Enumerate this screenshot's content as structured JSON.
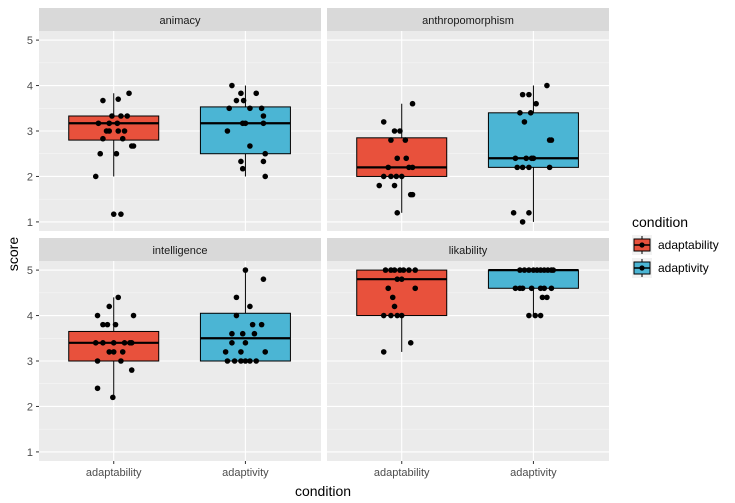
{
  "chart_data": {
    "type": "boxplot",
    "xlabel": "condition",
    "ylabel": "score",
    "categories": [
      "adaptability",
      "adaptivity"
    ],
    "ylim": [
      0.8,
      5.2
    ],
    "yticks": [
      1,
      2,
      3,
      4,
      5
    ],
    "grid": true,
    "legend": {
      "title": "condition",
      "position": "right",
      "entries": [
        {
          "label": "adaptability",
          "color": "#E8513C"
        },
        {
          "label": "adaptivity",
          "color": "#4BB5D4"
        }
      ]
    },
    "colors": {
      "adaptability": "#E8513C",
      "adaptivity": "#4BB5D4"
    },
    "facets": [
      {
        "title": "animacy",
        "boxes": [
          {
            "category": "adaptability",
            "lower_whisker": 2.0,
            "q1": 2.8,
            "median": 3.17,
            "q3": 3.33,
            "upper_whisker": 3.83,
            "points": [
              [
                -0.12,
                3.67
              ],
              [
                0.05,
                3.7
              ],
              [
                0.17,
                3.83
              ],
              [
                -0.17,
                3.17
              ],
              [
                -0.05,
                3.17
              ],
              [
                -0.02,
                3.33
              ],
              [
                0.08,
                3.33
              ],
              [
                0.15,
                3.33
              ],
              [
                0.04,
                3.17
              ],
              [
                -0.08,
                3.0
              ],
              [
                0.12,
                3.0
              ],
              [
                0.05,
                3.0
              ],
              [
                -0.05,
                3.0
              ],
              [
                0.1,
                2.83
              ],
              [
                -0.12,
                2.83
              ],
              [
                0.2,
                2.67
              ],
              [
                0.22,
                2.67
              ],
              [
                -0.15,
                2.5
              ],
              [
                0.03,
                2.5
              ],
              [
                -0.2,
                2.0
              ],
              [
                0.0,
                1.17
              ],
              [
                0.08,
                1.17
              ]
            ]
          },
          {
            "category": "adaptivity",
            "lower_whisker": 2.0,
            "q1": 2.5,
            "median": 3.17,
            "q3": 3.53,
            "upper_whisker": 4.0,
            "points": [
              [
                -0.15,
                4.0
              ],
              [
                -0.05,
                3.83
              ],
              [
                0.12,
                3.83
              ],
              [
                -0.1,
                3.67
              ],
              [
                -0.02,
                3.67
              ],
              [
                -0.18,
                3.5
              ],
              [
                0.05,
                3.5
              ],
              [
                0.18,
                3.5
              ],
              [
                0.2,
                3.33
              ],
              [
                0.0,
                3.17
              ],
              [
                -0.03,
                3.17
              ],
              [
                -0.2,
                3.0
              ],
              [
                0.2,
                3.17
              ],
              [
                0.05,
                2.67
              ],
              [
                0.22,
                2.5
              ],
              [
                -0.05,
                2.33
              ],
              [
                0.2,
                2.33
              ],
              [
                -0.03,
                2.17
              ],
              [
                0.22,
                2.0
              ]
            ]
          }
        ]
      },
      {
        "title": "anthropomorphism",
        "boxes": [
          {
            "category": "adaptability",
            "lower_whisker": 1.2,
            "q1": 2.0,
            "median": 2.2,
            "q3": 2.85,
            "upper_whisker": 3.6,
            "points": [
              [
                0.12,
                3.6
              ],
              [
                -0.2,
                3.2
              ],
              [
                -0.08,
                3.0
              ],
              [
                -0.02,
                3.0
              ],
              [
                -0.12,
                2.8
              ],
              [
                0.04,
                2.8
              ],
              [
                -0.05,
                2.4
              ],
              [
                0.05,
                2.4
              ],
              [
                -0.15,
                2.2
              ],
              [
                0.08,
                2.2
              ],
              [
                0.12,
                2.2
              ],
              [
                -0.2,
                2.0
              ],
              [
                -0.12,
                2.0
              ],
              [
                -0.06,
                2.0
              ],
              [
                0.0,
                2.0
              ],
              [
                -0.25,
                1.8
              ],
              [
                -0.08,
                1.8
              ],
              [
                0.1,
                1.6
              ],
              [
                0.12,
                1.6
              ],
              [
                -0.05,
                1.2
              ]
            ]
          },
          {
            "category": "adaptivity",
            "lower_whisker": 1.0,
            "q1": 2.2,
            "median": 2.4,
            "q3": 3.4,
            "upper_whisker": 4.0,
            "points": [
              [
                0.15,
                4.0
              ],
              [
                -0.12,
                3.8
              ],
              [
                -0.05,
                3.8
              ],
              [
                0.03,
                3.6
              ],
              [
                -0.15,
                3.4
              ],
              [
                -0.03,
                3.4
              ],
              [
                -0.1,
                3.2
              ],
              [
                0.18,
                2.8
              ],
              [
                0.2,
                2.8
              ],
              [
                -0.2,
                2.4
              ],
              [
                -0.08,
                2.4
              ],
              [
                -0.02,
                2.4
              ],
              [
                0.0,
                2.4
              ],
              [
                -0.18,
                2.2
              ],
              [
                -0.12,
                2.2
              ],
              [
                -0.05,
                2.2
              ],
              [
                0.18,
                2.2
              ],
              [
                -0.22,
                1.2
              ],
              [
                -0.05,
                1.2
              ],
              [
                -0.12,
                1.0
              ]
            ]
          }
        ]
      },
      {
        "title": "intelligence",
        "boxes": [
          {
            "category": "adaptability",
            "lower_whisker": 2.2,
            "q1": 3.0,
            "median": 3.4,
            "q3": 3.65,
            "upper_whisker": 4.4,
            "points": [
              [
                0.05,
                4.4
              ],
              [
                -0.05,
                4.2
              ],
              [
                -0.18,
                4.0
              ],
              [
                0.22,
                4.0
              ],
              [
                -0.12,
                3.8
              ],
              [
                -0.07,
                3.8
              ],
              [
                0.02,
                3.8
              ],
              [
                -0.2,
                3.4
              ],
              [
                -0.12,
                3.4
              ],
              [
                0.0,
                3.4
              ],
              [
                0.12,
                3.4
              ],
              [
                0.18,
                3.4
              ],
              [
                0.2,
                3.4
              ],
              [
                -0.05,
                3.2
              ],
              [
                0.0,
                3.2
              ],
              [
                0.1,
                3.2
              ],
              [
                -0.18,
                3.0
              ],
              [
                0.08,
                3.0
              ],
              [
                0.2,
                2.8
              ],
              [
                -0.18,
                2.4
              ],
              [
                -0.01,
                2.2
              ]
            ]
          },
          {
            "category": "adaptivity",
            "lower_whisker": 3.0,
            "q1": 3.0,
            "median": 3.5,
            "q3": 4.05,
            "upper_whisker": 5.0,
            "points": [
              [
                0.0,
                5.0
              ],
              [
                0.2,
                4.8
              ],
              [
                -0.1,
                4.4
              ],
              [
                0.05,
                4.2
              ],
              [
                -0.1,
                4.0
              ],
              [
                0.08,
                3.8
              ],
              [
                0.18,
                3.8
              ],
              [
                -0.15,
                3.6
              ],
              [
                -0.03,
                3.6
              ],
              [
                0.1,
                3.6
              ],
              [
                -0.15,
                3.4
              ],
              [
                0.0,
                3.4
              ],
              [
                -0.22,
                3.2
              ],
              [
                -0.05,
                3.2
              ],
              [
                0.22,
                3.2
              ],
              [
                -0.2,
                3.0
              ],
              [
                -0.12,
                3.0
              ],
              [
                -0.05,
                3.0
              ],
              [
                0.0,
                3.0
              ],
              [
                0.05,
                3.0
              ],
              [
                0.12,
                3.0
              ]
            ]
          }
        ]
      },
      {
        "title": "likability",
        "boxes": [
          {
            "category": "adaptability",
            "lower_whisker": 3.2,
            "q1": 4.0,
            "median": 4.8,
            "q3": 5.0,
            "upper_whisker": 5.0,
            "points": [
              [
                -0.18,
                5.0
              ],
              [
                -0.12,
                5.0
              ],
              [
                -0.08,
                5.0
              ],
              [
                -0.02,
                5.0
              ],
              [
                0.02,
                5.0
              ],
              [
                0.08,
                5.0
              ],
              [
                0.15,
                5.0
              ],
              [
                -0.05,
                4.8
              ],
              [
                0.0,
                4.8
              ],
              [
                -0.15,
                4.6
              ],
              [
                0.15,
                4.6
              ],
              [
                -0.1,
                4.4
              ],
              [
                -0.08,
                4.2
              ],
              [
                -0.2,
                4.0
              ],
              [
                -0.12,
                4.0
              ],
              [
                -0.05,
                4.0
              ],
              [
                0.0,
                4.0
              ],
              [
                0.1,
                3.4
              ],
              [
                -0.2,
                3.2
              ]
            ]
          },
          {
            "category": "adaptivity",
            "lower_whisker": 4.0,
            "q1": 4.6,
            "median": 5.0,
            "q3": 5.0,
            "upper_whisker": 5.0,
            "points": [
              [
                -0.15,
                5.0
              ],
              [
                -0.1,
                5.0
              ],
              [
                -0.05,
                5.0
              ],
              [
                0.0,
                5.0
              ],
              [
                0.04,
                5.0
              ],
              [
                0.08,
                5.0
              ],
              [
                0.12,
                5.0
              ],
              [
                0.16,
                5.0
              ],
              [
                0.2,
                5.0
              ],
              [
                0.22,
                5.0
              ],
              [
                -0.2,
                4.6
              ],
              [
                -0.15,
                4.6
              ],
              [
                -0.12,
                4.6
              ],
              [
                -0.02,
                4.6
              ],
              [
                0.08,
                4.6
              ],
              [
                0.12,
                4.6
              ],
              [
                0.2,
                4.6
              ],
              [
                0.15,
                4.4
              ],
              [
                0.1,
                4.4
              ],
              [
                -0.05,
                4.0
              ],
              [
                0.02,
                4.0
              ],
              [
                0.08,
                4.0
              ]
            ]
          }
        ]
      }
    ]
  }
}
